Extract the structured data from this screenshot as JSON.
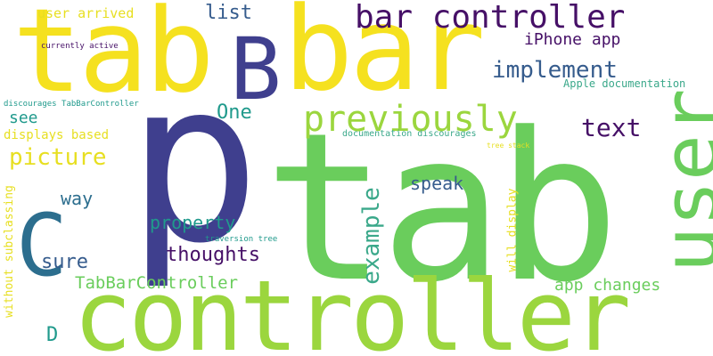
{
  "words": [
    {
      "text": "tab",
      "color": "#6acd5c"
    },
    {
      "text": "p",
      "color": "#3f3f8e"
    },
    {
      "text": "controller",
      "color": "#9bd63e"
    },
    {
      "text": "tab",
      "color": "#f5e11f"
    },
    {
      "text": "bar",
      "color": "#f5e11f"
    },
    {
      "text": "B",
      "color": "#3f3f8e"
    },
    {
      "text": "user",
      "color": "#6acd5c"
    },
    {
      "text": "C",
      "color": "#2c6e8e"
    },
    {
      "text": "bar controller",
      "color": "#461067"
    },
    {
      "text": "previously",
      "color": "#9bd63e"
    },
    {
      "text": "implement",
      "color": "#365c8d"
    },
    {
      "text": "iPhone app",
      "color": "#461067"
    },
    {
      "text": "list",
      "color": "#365c8d"
    },
    {
      "text": "user arrived",
      "color": "#e7df21"
    },
    {
      "text": "currently active",
      "color": "#461067"
    },
    {
      "text": "One",
      "color": "#209a8c"
    },
    {
      "text": "text",
      "color": "#461067"
    },
    {
      "text": "see",
      "color": "#209a8c"
    },
    {
      "text": "picture",
      "color": "#e7df21"
    },
    {
      "text": "displays based",
      "color": "#e7df21"
    },
    {
      "text": "discourages TabBarController",
      "color": "#209a8c"
    },
    {
      "text": "Apple documentation",
      "color": "#3aa88a"
    },
    {
      "text": "documentation discourages",
      "color": "#3aa88a"
    },
    {
      "text": "tree stack",
      "color": "#e7df21"
    },
    {
      "text": "way",
      "color": "#2c6e8e"
    },
    {
      "text": "speak",
      "color": "#365c8d"
    },
    {
      "text": "example",
      "color": "#3aa88a"
    },
    {
      "text": "property",
      "color": "#209a8c"
    },
    {
      "text": "traversion tree",
      "color": "#209a8c"
    },
    {
      "text": "sure",
      "color": "#365c8d"
    },
    {
      "text": "thoughts",
      "color": "#461067"
    },
    {
      "text": "will display",
      "color": "#e7df21"
    },
    {
      "text": "TabBarController",
      "color": "#6acd5c"
    },
    {
      "text": "app changes",
      "color": "#6acd5c"
    },
    {
      "text": "without subclassing",
      "color": "#e7df21"
    },
    {
      "text": "D",
      "color": "#209a8c"
    }
  ]
}
